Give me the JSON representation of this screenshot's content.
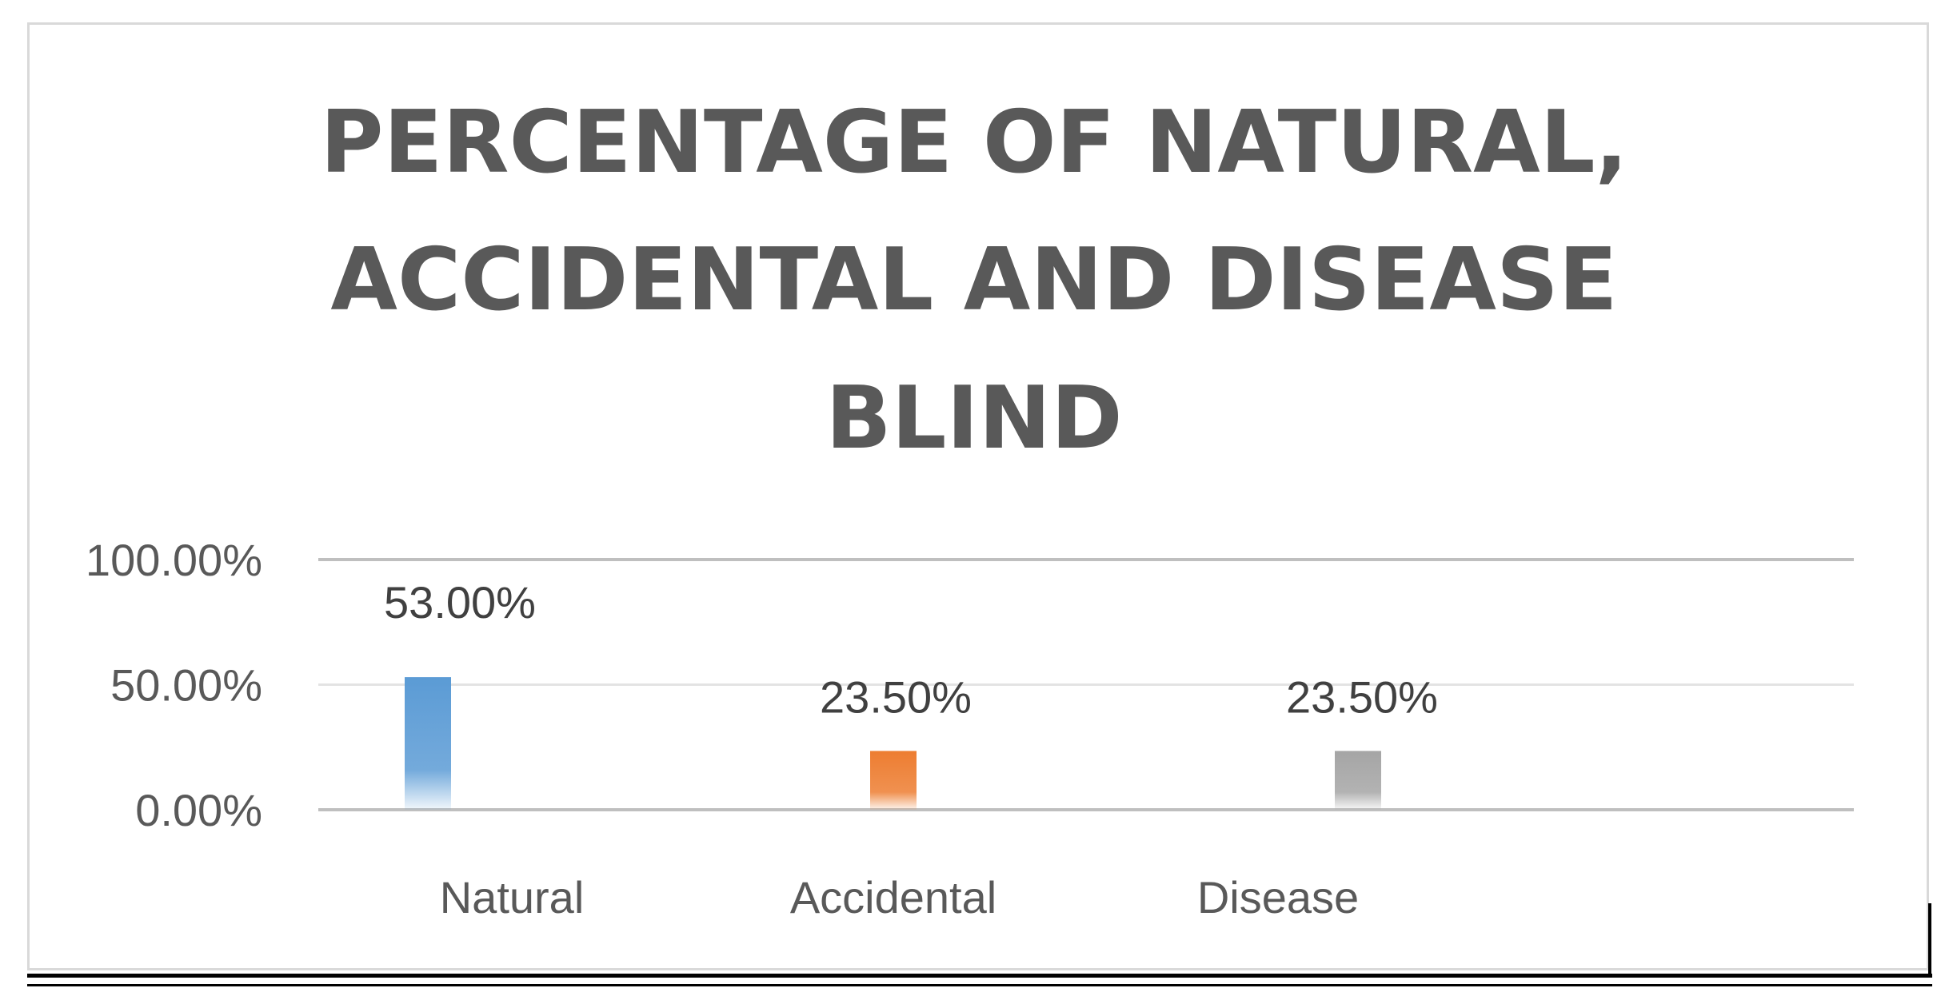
{
  "chart_data": {
    "type": "bar",
    "title_lines": [
      "PERCENTAGE OF NATURAL,",
      "ACCIDENTAL AND DISEASE",
      "BLIND"
    ],
    "categories": [
      "Natural",
      "Accidental",
      "Disease"
    ],
    "values": [
      53.0,
      23.5,
      23.5
    ],
    "data_labels": [
      "53.00%",
      "23.50%",
      "23.50%"
    ],
    "y_ticks": [
      0,
      50,
      100
    ],
    "y_tick_labels": [
      "0.00%",
      "50.00%",
      "100.00%"
    ],
    "ylim": [
      0,
      100
    ],
    "grid": true,
    "legend": "none",
    "colors": [
      "#5b9bd5",
      "#ed7d31",
      "#a5a5a5"
    ]
  }
}
